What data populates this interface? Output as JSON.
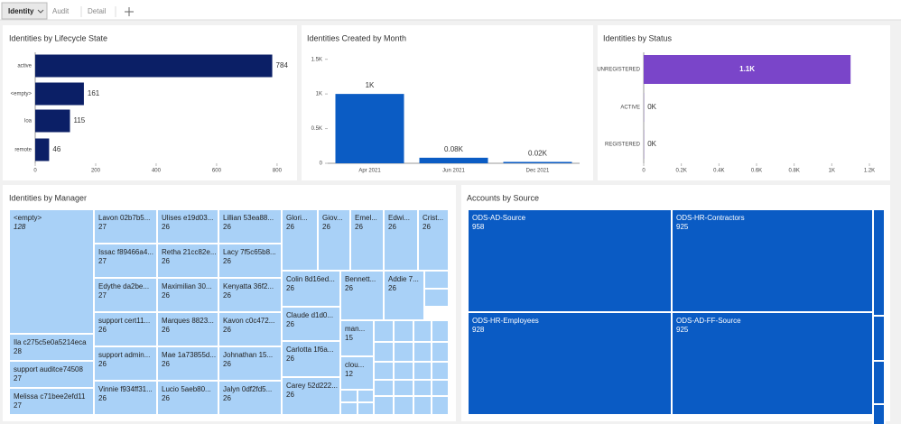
{
  "tabs": [
    "Identity",
    "Audit",
    "Detail"
  ],
  "chart_data": [
    {
      "type": "hbar",
      "title": "Identities by Lifecycle State",
      "categories": [
        "active",
        "<empty>",
        "loa",
        "remote"
      ],
      "values": [
        784,
        161,
        115,
        46
      ],
      "color": "#0b1f66",
      "xlim": [
        0,
        860
      ],
      "xticks": [
        0,
        200,
        400,
        600,
        800
      ]
    },
    {
      "type": "bar",
      "title": "Identities Created by Month",
      "categories": [
        "Apr 2021",
        "Jun 2021",
        "Dec 2021"
      ],
      "values": [
        1000,
        80,
        20
      ],
      "value_labels": [
        "1K",
        "0.08K",
        "0.02K"
      ],
      "color": "#0b5cc4",
      "ylim": [
        0,
        1600
      ],
      "yticks": [
        0,
        {
          "value": 500,
          "label": "0.5K"
        },
        {
          "value": 1000,
          "label": "1K"
        },
        {
          "value": 1500,
          "label": "1.5K"
        }
      ]
    },
    {
      "type": "hbar",
      "title": "Identities by Status",
      "categories": [
        "UNREGISTERED",
        "ACTIVE",
        "REGISTERED"
      ],
      "values": [
        1100,
        1,
        1
      ],
      "value_labels": [
        "1.1K",
        "0K",
        "0K"
      ],
      "color": "#7a45c9",
      "xlim": [
        0,
        1200
      ],
      "xticks": [
        0,
        {
          "value": 200,
          "label": "0.2K"
        },
        {
          "value": 400,
          "label": "0.4K"
        },
        {
          "value": 600,
          "label": "0.6K"
        },
        {
          "value": 800,
          "label": "0.8K"
        },
        {
          "value": 1000,
          "label": "1K"
        },
        {
          "value": 1200,
          "label": "1.2K"
        }
      ]
    },
    {
      "type": "treemap",
      "title": "Identities by Manager",
      "color": "#a9d1f7",
      "categories": [
        "<empty>",
        "Ila c275c5e0a5214eca",
        "support auditce74508",
        "Melissa c71bee2efd11",
        "Lavon 02b7b5...",
        "Issac f89466a4...",
        "Edythe da2be...",
        "support cert11...",
        "support admin...",
        "Vinnie f934ff31...",
        "Ulises e19d03...",
        "Retha 21cc82e...",
        "Maximilian 30...",
        "Marques 8823...",
        "Mae 1a73855d...",
        "Lucio 5aeb80...",
        "Lillian 53ea88...",
        "Lacy 7f5c65b8...",
        "Kenyatta 36f2...",
        "Kavon c0c472...",
        "Johnathan 15...",
        "Jalyn 0df2fd5...",
        "Glori...",
        "Giov...",
        "Emel...",
        "Edwi...",
        "Crist...",
        "Colin 8d16ed...",
        "Bennett...",
        "Addie 7...",
        "Claude d1d0...",
        "Carlotta 1f6a...",
        "Carey 52d222...",
        "man...",
        "clou..."
      ],
      "values": [
        128,
        28,
        27,
        27,
        27,
        27,
        27,
        26,
        26,
        26,
        26,
        26,
        26,
        26,
        26,
        26,
        26,
        26,
        26,
        26,
        26,
        26,
        26,
        26,
        26,
        26,
        26,
        26,
        26,
        26,
        26,
        26,
        26,
        15,
        12
      ]
    },
    {
      "type": "treemap",
      "title": "Accounts by Source",
      "color": "#0a5bc4",
      "categories": [
        "ODS-AD-Source",
        "ODS-HR-Contractors",
        "ODS-HR-Employees",
        "ODS-AD-FF-Source"
      ],
      "values": [
        958,
        925,
        928,
        925
      ]
    }
  ]
}
